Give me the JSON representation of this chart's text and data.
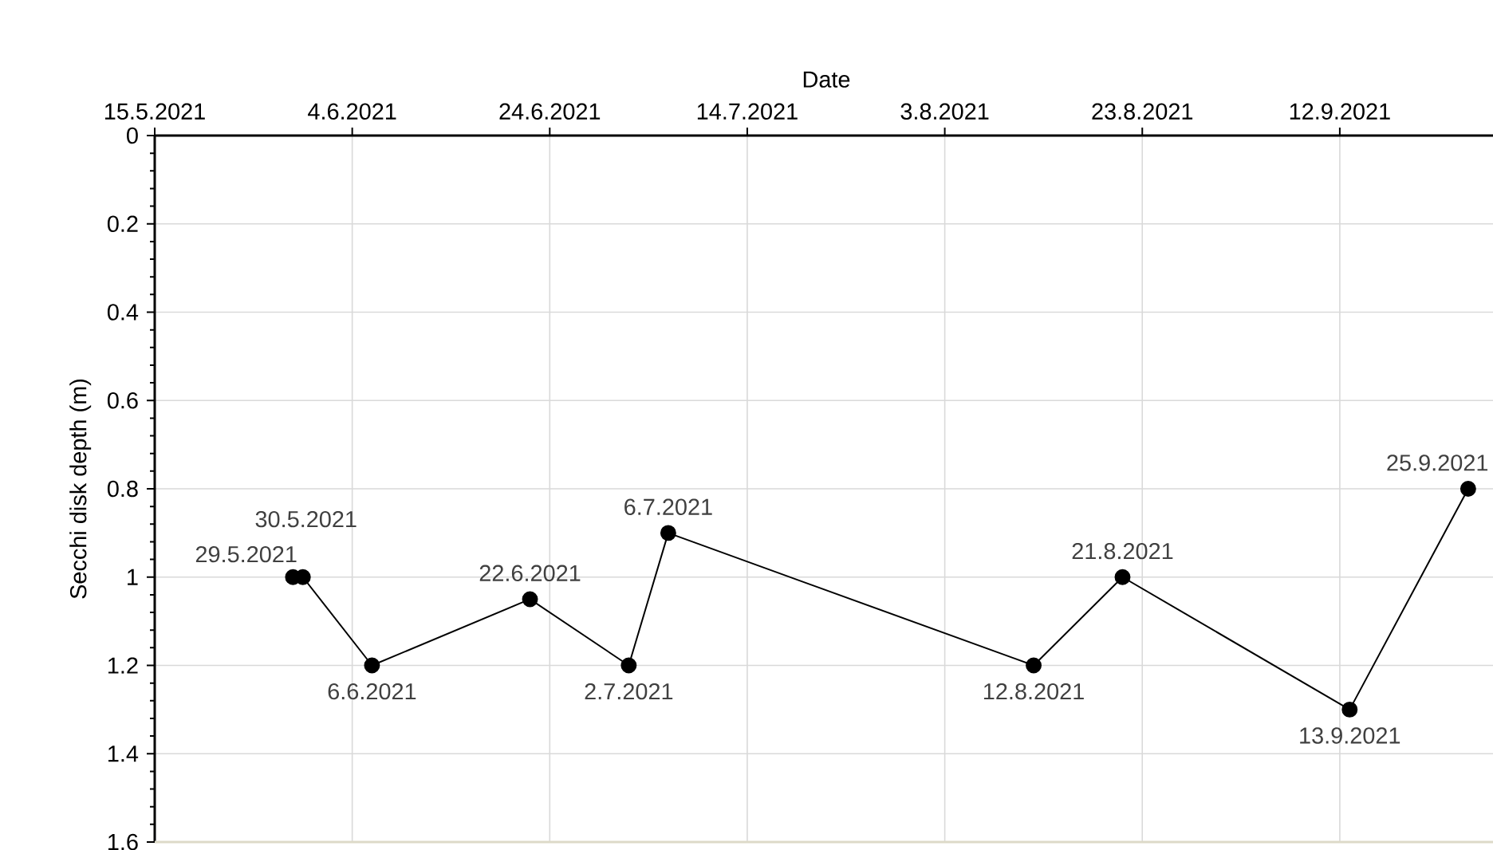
{
  "chart_data": {
    "type": "line",
    "xlabel": "Date",
    "ylabel": "Secchi disk depth (m)",
    "x": [
      "2021-05-29",
      "2021-05-30",
      "2021-06-06",
      "2021-06-22",
      "2021-07-02",
      "2021-07-06",
      "2021-08-12",
      "2021-08-21",
      "2021-09-13",
      "2021-09-25"
    ],
    "values": [
      1.0,
      1.0,
      1.2,
      1.05,
      1.2,
      0.9,
      1.2,
      1.0,
      1.3,
      0.8
    ],
    "color": "#000000",
    "marker": "circle",
    "grid": true,
    "xlim": [
      "2021-05-15",
      "2021-09-28"
    ],
    "xticks": [
      {
        "value": "2021-05-15",
        "label": "15.5.2021"
      },
      {
        "value": "2021-06-04",
        "label": "4.6.2021"
      },
      {
        "value": "2021-06-24",
        "label": "24.6.2021"
      },
      {
        "value": "2021-07-14",
        "label": "14.7.2021"
      },
      {
        "value": "2021-08-03",
        "label": "3.8.2021"
      },
      {
        "value": "2021-08-23",
        "label": "23.8.2021"
      },
      {
        "value": "2021-09-12",
        "label": "12.9.2021"
      }
    ],
    "ylim": [
      1.6,
      0
    ],
    "yticks": [
      0,
      0.2,
      0.4,
      0.6,
      0.8,
      1,
      1.2,
      1.4,
      1.6
    ],
    "annotations": [
      {
        "text": "29.5.2021",
        "x": "2021-05-29",
        "y": 1.0
      },
      {
        "text": "30.5.2021",
        "x": "2021-05-30",
        "y": 1.0
      },
      {
        "text": "6.6.2021",
        "x": "2021-06-06",
        "y": 1.2
      },
      {
        "text": "22.6.2021",
        "x": "2021-06-22",
        "y": 1.05
      },
      {
        "text": "2.7.2021",
        "x": "2021-07-02",
        "y": 1.2
      },
      {
        "text": "6.7.2021",
        "x": "2021-07-06",
        "y": 0.9
      },
      {
        "text": "12.8.2021",
        "x": "2021-08-12",
        "y": 1.2
      },
      {
        "text": "21.8.2021",
        "x": "2021-08-21",
        "y": 1.0
      },
      {
        "text": "13.9.2021",
        "x": "2021-09-13",
        "y": 1.3
      },
      {
        "text": "25.9.2021",
        "x": "2021-09-25",
        "y": 0.8
      }
    ]
  }
}
